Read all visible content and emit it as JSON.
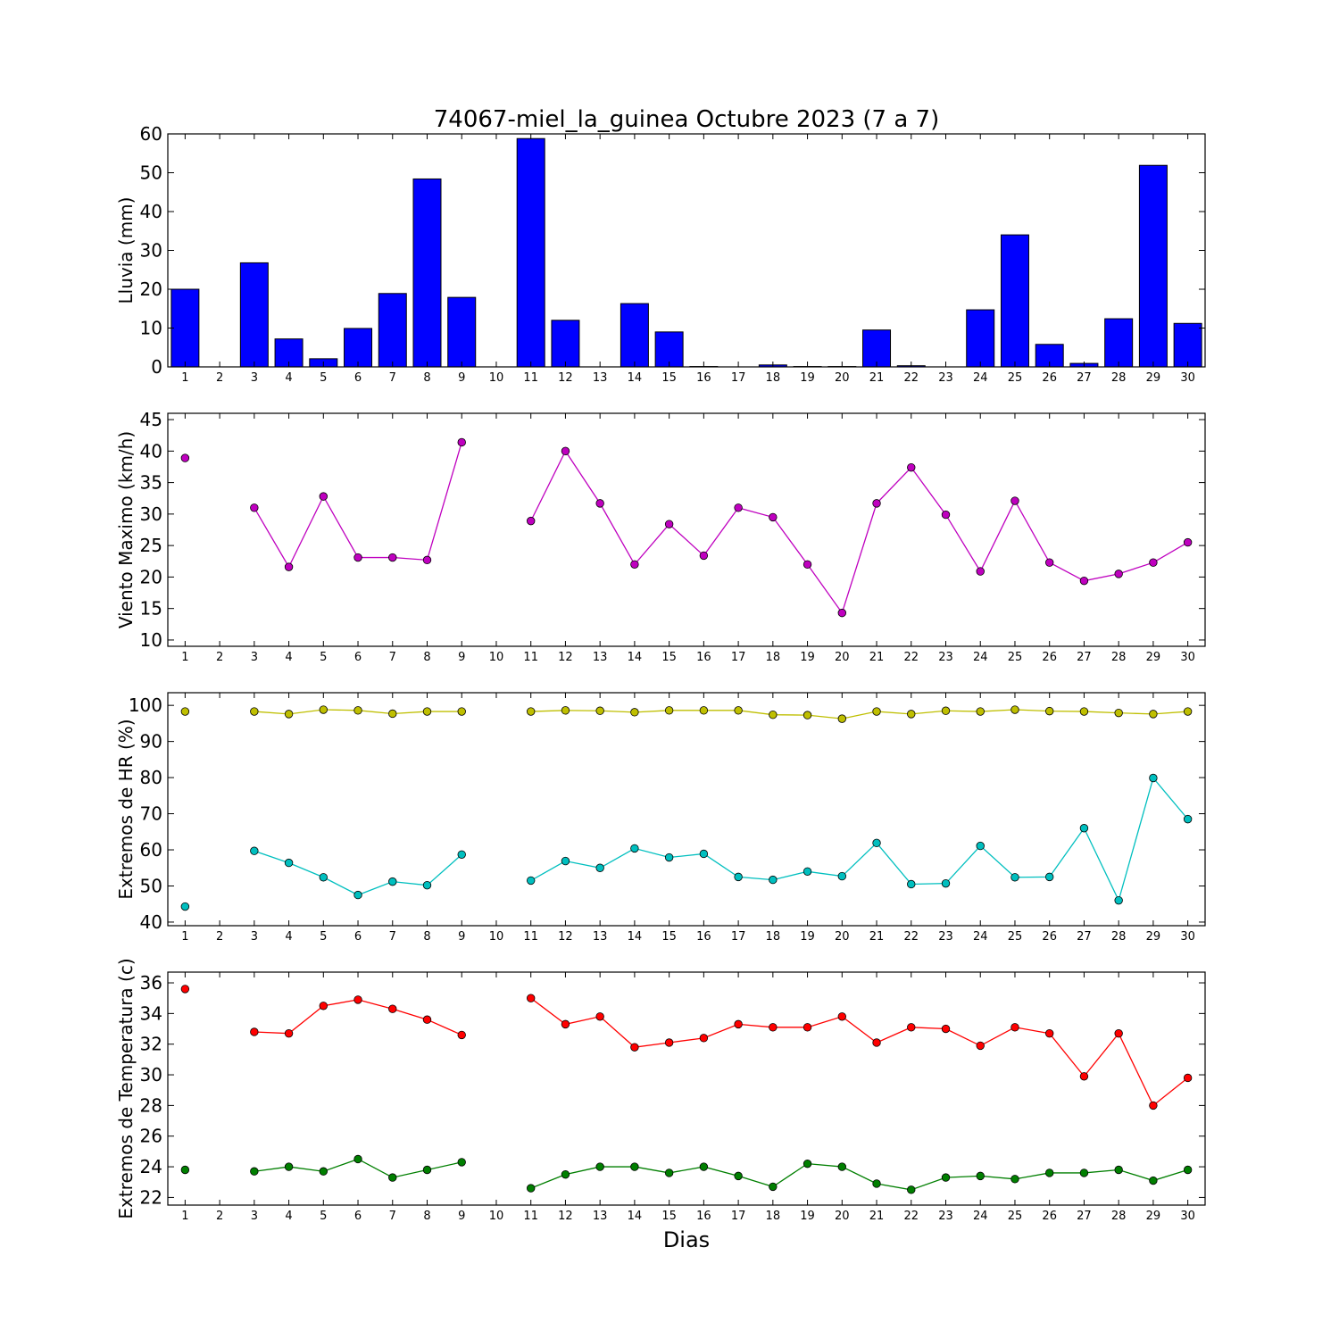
{
  "figure": {
    "title": "74067-miel_la_guinea Octubre 2023  (7 a 7)",
    "xlabel": "Dias"
  },
  "chart_data": [
    {
      "type": "bar",
      "ylabel": "Lluvia (mm)",
      "ylim": [
        0,
        60
      ],
      "yticks": [
        0,
        10,
        20,
        30,
        40,
        50,
        60
      ],
      "grid": false,
      "categories": [
        "1",
        "2",
        "3",
        "4",
        "5",
        "6",
        "7",
        "8",
        "9",
        "10",
        "11",
        "12",
        "13",
        "14",
        "15",
        "16",
        "17",
        "18",
        "19",
        "20",
        "21",
        "22",
        "23",
        "24",
        "25",
        "26",
        "27",
        "28",
        "29",
        "30"
      ],
      "series": [
        {
          "color": "#0000ff",
          "values": [
            20.0,
            0,
            26.8,
            7.2,
            2.1,
            9.9,
            18.9,
            48.4,
            17.9,
            0,
            58.8,
            12.0,
            0,
            16.3,
            9.0,
            0.1,
            0,
            0.5,
            0.1,
            0.1,
            9.5,
            0.3,
            0,
            14.7,
            34.0,
            5.8,
            0.9,
            12.4,
            51.9,
            11.2
          ]
        }
      ]
    },
    {
      "type": "line",
      "ylabel": "Viento Maximo (km/h)",
      "ylim": [
        9,
        46
      ],
      "yticks": [
        10,
        15,
        20,
        25,
        30,
        35,
        40,
        45
      ],
      "grid": false,
      "x": [
        1,
        2,
        3,
        4,
        5,
        6,
        7,
        8,
        9,
        10,
        11,
        12,
        13,
        14,
        15,
        16,
        17,
        18,
        19,
        20,
        21,
        22,
        23,
        24,
        25,
        26,
        27,
        28,
        29,
        30
      ],
      "series": [
        {
          "color": "#bf00bf",
          "values": [
            38.9,
            null,
            31.0,
            21.6,
            32.8,
            23.1,
            23.1,
            22.7,
            41.4,
            null,
            28.9,
            40.0,
            31.7,
            22.0,
            28.4,
            23.4,
            31.0,
            29.5,
            22.0,
            14.3,
            31.7,
            37.4,
            29.9,
            20.9,
            32.1,
            22.3,
            19.4,
            20.5,
            22.3,
            25.5
          ]
        }
      ]
    },
    {
      "type": "line",
      "ylabel": "Extremos de HR (%)",
      "ylim": [
        39,
        103.5
      ],
      "yticks": [
        40,
        50,
        60,
        70,
        80,
        90,
        100
      ],
      "grid": false,
      "x": [
        1,
        2,
        3,
        4,
        5,
        6,
        7,
        8,
        9,
        10,
        11,
        12,
        13,
        14,
        15,
        16,
        17,
        18,
        19,
        20,
        21,
        22,
        23,
        24,
        25,
        26,
        27,
        28,
        29,
        30
      ],
      "series": [
        {
          "color": "#bfbf00",
          "values": [
            98.3,
            null,
            98.3,
            97.6,
            98.8,
            98.6,
            97.7,
            98.3,
            98.3,
            null,
            98.3,
            98.6,
            98.5,
            98.1,
            98.6,
            98.6,
            98.6,
            97.4,
            97.3,
            96.3,
            98.3,
            97.6,
            98.5,
            98.3,
            98.8,
            98.4,
            98.3,
            97.9,
            97.6,
            98.3
          ]
        },
        {
          "color": "#00bfbf",
          "values": [
            44.3,
            null,
            59.7,
            56.4,
            52.4,
            47.5,
            51.2,
            50.2,
            58.7,
            null,
            51.5,
            56.9,
            55.0,
            60.4,
            57.9,
            58.9,
            52.5,
            51.7,
            54.0,
            52.7,
            61.9,
            50.5,
            50.7,
            61.1,
            52.4,
            52.5,
            66.0,
            46.0,
            79.9,
            68.5
          ]
        }
      ]
    },
    {
      "type": "line",
      "ylabel": "Extremos de Temperatura (c)",
      "ylim": [
        21.5,
        36.7
      ],
      "yticks": [
        22,
        24,
        26,
        28,
        30,
        32,
        34,
        36
      ],
      "grid": false,
      "x": [
        1,
        2,
        3,
        4,
        5,
        6,
        7,
        8,
        9,
        10,
        11,
        12,
        13,
        14,
        15,
        16,
        17,
        18,
        19,
        20,
        21,
        22,
        23,
        24,
        25,
        26,
        27,
        28,
        29,
        30
      ],
      "series": [
        {
          "color": "#ff0000",
          "values": [
            35.6,
            null,
            32.8,
            32.7,
            34.5,
            34.9,
            34.3,
            33.6,
            32.6,
            null,
            35.0,
            33.3,
            33.8,
            31.8,
            32.1,
            32.4,
            33.3,
            33.1,
            33.1,
            33.8,
            32.1,
            33.1,
            33.0,
            31.9,
            33.1,
            32.7,
            29.9,
            32.7,
            28.0,
            29.8
          ]
        },
        {
          "color": "#007f00",
          "values": [
            23.8,
            null,
            23.7,
            24.0,
            23.7,
            24.5,
            23.3,
            23.8,
            24.3,
            null,
            22.6,
            23.5,
            24.0,
            24.0,
            23.6,
            24.0,
            23.4,
            22.7,
            24.2,
            24.0,
            22.9,
            22.5,
            23.3,
            23.4,
            23.2,
            23.6,
            23.6,
            23.8,
            23.1,
            23.8
          ]
        }
      ]
    }
  ]
}
